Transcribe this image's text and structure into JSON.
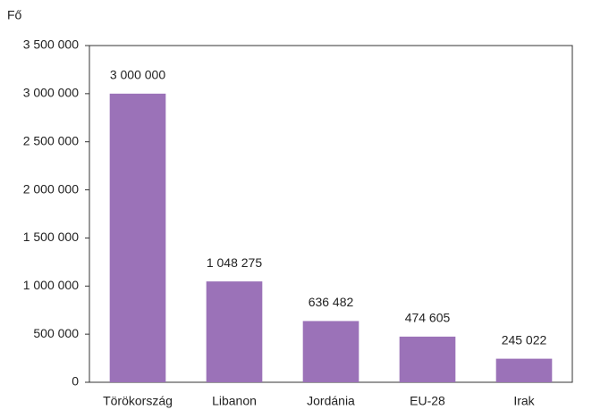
{
  "chart_data": {
    "type": "bar",
    "y_label": "Fő",
    "categories": [
      "Törökország",
      "Libanon",
      "Jordánia",
      "EU-28",
      "Irak"
    ],
    "values": [
      3000000,
      1048275,
      636482,
      474605,
      245022
    ],
    "value_labels": [
      "3 000 000",
      "1 048 275",
      "636 482",
      "474 605",
      "245 022"
    ],
    "color": "#9b72b8",
    "ylim": [
      0,
      3500000
    ],
    "yticks": [
      0,
      {
        "value": 500000,
        "label": "500 000"
      },
      {
        "value": 1000000,
        "label": "1 000 000"
      },
      {
        "value": 1500000,
        "label": "1 500 000"
      },
      {
        "value": 2000000,
        "label": "2 000 000"
      },
      {
        "value": 2500000,
        "label": "2 500 000"
      },
      {
        "value": 3000000,
        "label": "3 000 000"
      },
      {
        "value": 3500000,
        "label": "3 500 000"
      }
    ],
    "grid": false
  }
}
